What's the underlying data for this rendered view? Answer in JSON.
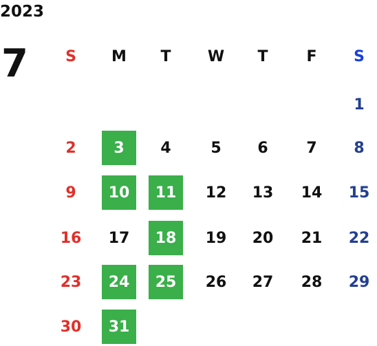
{
  "year": "2023",
  "month": "7",
  "weekdays": [
    "S",
    "M",
    "T",
    "W",
    "T",
    "F",
    "S"
  ],
  "days": [
    [
      "",
      "",
      "",
      "",
      "",
      "",
      "1"
    ],
    [
      "2",
      "3",
      "4",
      "5",
      "6",
      "7",
      "8"
    ],
    [
      "9",
      "10",
      "11",
      "12",
      "13",
      "14",
      "15"
    ],
    [
      "16",
      "17",
      "18",
      "19",
      "20",
      "21",
      "22"
    ],
    [
      "23",
      "24",
      "25",
      "26",
      "27",
      "28",
      "29"
    ],
    [
      "30",
      "31",
      "",
      "",
      "",
      "",
      ""
    ]
  ],
  "highlighted": [
    "3",
    "10",
    "11",
    "18",
    "24",
    "25",
    "31"
  ],
  "colors": {
    "sunday": "#e0302a",
    "saturday": "#233f8f",
    "saturday_header": "#1a3fd6",
    "highlight": "#3aaf4a"
  }
}
